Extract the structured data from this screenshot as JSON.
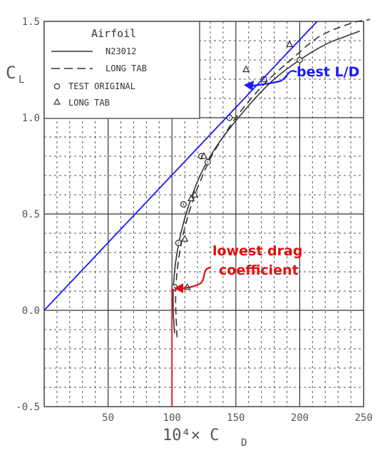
{
  "chart_data": {
    "type": "line",
    "xlabel": "10⁴× C",
    "xlabel_sub": "D",
    "ylabel": "C",
    "ylabel_sub": "L",
    "xlim": [
      0,
      250
    ],
    "ylim": [
      -0.5,
      1.5
    ],
    "x_ticks": [
      "50",
      "100",
      "150",
      "200",
      "250"
    ],
    "y_ticks": [
      "-0.5",
      "0.0",
      "0.5",
      "1.0",
      "1.5"
    ],
    "x_tick_values": [
      50,
      100,
      150,
      200,
      250
    ],
    "y_tick_values": [
      -0.5,
      0.0,
      0.5,
      1.0,
      1.5
    ],
    "grid": true,
    "legend": {
      "title": "Airfoil",
      "placement": "top-left",
      "entries": [
        "N23012",
        "LONG TAB",
        "TEST ORIGINAL",
        "LONG TAB"
      ]
    },
    "series": [
      {
        "name": "N23012",
        "style": "solid",
        "x": [
          102,
          101,
          101,
          102,
          104,
          107,
          111,
          116,
          122,
          130,
          140,
          152,
          165,
          180,
          200,
          220,
          235,
          247
        ],
        "y": [
          -0.12,
          0.0,
          0.1,
          0.2,
          0.3,
          0.4,
          0.5,
          0.6,
          0.7,
          0.8,
          0.9,
          1.0,
          1.1,
          1.2,
          1.3,
          1.38,
          1.42,
          1.45
        ]
      },
      {
        "name": "LONG TAB",
        "style": "dashed",
        "x": [
          104,
          103,
          103,
          104,
          106,
          109,
          113,
          118,
          124,
          131,
          140,
          150,
          162,
          176,
          193,
          215,
          240,
          255
        ],
        "y": [
          -0.14,
          0.0,
          0.1,
          0.2,
          0.3,
          0.4,
          0.5,
          0.6,
          0.7,
          0.8,
          0.9,
          1.0,
          1.1,
          1.2,
          1.3,
          1.42,
          1.49,
          1.51
        ]
      },
      {
        "name": "TEST ORIGINAL",
        "marker": "circle",
        "x": [
          102,
          105,
          109,
          123,
          128,
          145,
          172,
          200
        ],
        "y": [
          0.12,
          0.35,
          0.55,
          0.8,
          0.77,
          1.0,
          1.2,
          1.3
        ]
      },
      {
        "name": "LONG TAB",
        "marker": "triangle",
        "x": [
          112,
          110,
          115,
          118,
          125,
          158,
          192
        ],
        "y": [
          0.12,
          0.37,
          0.58,
          0.6,
          0.8,
          1.25,
          1.38
        ]
      }
    ],
    "reference_lines": [
      {
        "kind": "tangent",
        "color": "#1a1aff",
        "from": [
          0,
          0.0
        ],
        "to": [
          225,
          1.58
        ]
      },
      {
        "kind": "vertical",
        "color": "#e01010",
        "from": [
          100,
          -0.5
        ],
        "to": [
          100,
          0.12
        ]
      }
    ],
    "annotations": [
      {
        "text": "best L/D",
        "color": "#1a1aff",
        "at": [
          162,
          1.15
        ]
      },
      {
        "text_lines": [
          "lowest drag",
          "coefficient"
        ],
        "color": "#e01010",
        "at": [
          100,
          0.12
        ]
      }
    ]
  }
}
